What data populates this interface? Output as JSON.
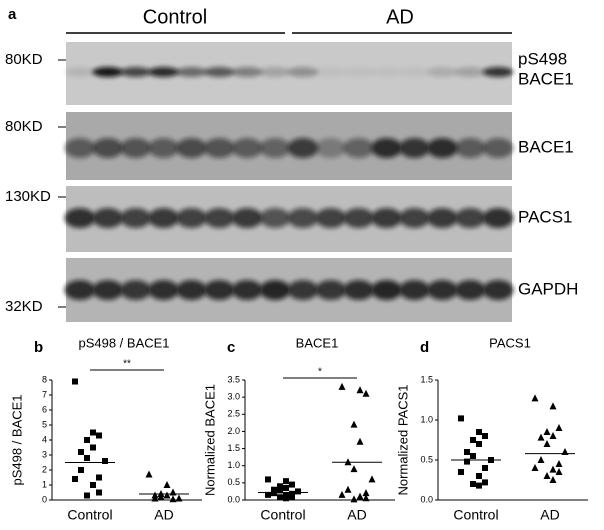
{
  "blot": {
    "panel_label": "a",
    "groups": [
      "Control",
      "AD"
    ],
    "markers": [
      "80KD",
      "80KD",
      "130KD",
      "32KD"
    ],
    "rows": [
      {
        "lines": [
          "pS498",
          "BACE1"
        ]
      },
      {
        "lines": [
          "BACE1"
        ]
      },
      {
        "lines": [
          "PACS1"
        ]
      },
      {
        "lines": [
          "GAPDH"
        ]
      }
    ]
  },
  "chart_data": [
    {
      "type": "scatter",
      "panel": "b",
      "title": "pS498 / BACE1",
      "y_label": "pS498 / BACE1",
      "categories": [
        "Control",
        "AD"
      ],
      "ylim": [
        0,
        8
      ],
      "yticks": [
        0,
        1,
        2,
        3,
        4,
        5,
        6,
        7,
        8
      ],
      "significance": "**",
      "series": [
        {
          "marker": "square",
          "color": "#000000",
          "mean": 2.5,
          "values": [
            7.9,
            4.5,
            4.3,
            4.0,
            3.5,
            3.2,
            2.8,
            2.6,
            2.0,
            1.5,
            1.4,
            1.0,
            0.5,
            0.3
          ]
        },
        {
          "marker": "triangle",
          "color": "#000000",
          "mean": 0.4,
          "values": [
            1.7,
            1.0,
            0.5,
            0.4,
            0.3,
            0.3,
            0.2,
            0.1,
            0.1,
            0.05
          ]
        }
      ]
    },
    {
      "type": "scatter",
      "panel": "c",
      "title": "BACE1",
      "y_label": "Normalized BACE1",
      "categories": [
        "Control",
        "AD"
      ],
      "ylim": [
        0,
        3.5
      ],
      "yticks": [
        {
          "value": 0,
          "label": "0.0"
        },
        0.5,
        {
          "value": 1,
          "label": "1.0"
        },
        1.5,
        {
          "value": 2,
          "label": "2.0"
        },
        2.5,
        {
          "value": 3,
          "label": "3.0"
        },
        3.5
      ],
      "significance": "*",
      "series": [
        {
          "marker": "square",
          "color": "#000000",
          "mean": 0.22,
          "values": [
            0.6,
            0.55,
            0.45,
            0.4,
            0.35,
            0.3,
            0.28,
            0.25,
            0.2,
            0.18,
            0.15,
            0.12,
            0.1,
            0.08,
            0.05
          ]
        },
        {
          "marker": "triangle",
          "color": "#000000",
          "mean": 1.1,
          "values": [
            3.3,
            3.2,
            3.1,
            2.2,
            1.7,
            1.1,
            0.9,
            0.6,
            0.3,
            0.2,
            0.15,
            0.1,
            0.05,
            0.02
          ]
        }
      ]
    },
    {
      "type": "scatter",
      "panel": "d",
      "title": "PACS1",
      "y_label": "Normalized PACS1",
      "categories": [
        "Control",
        "AD"
      ],
      "ylim": [
        0,
        1.5
      ],
      "yticks": [
        {
          "value": 0,
          "label": "0.0"
        },
        0.5,
        {
          "value": 1,
          "label": "1.0"
        },
        1.5
      ],
      "series": [
        {
          "marker": "square",
          "color": "#000000",
          "mean": 0.5,
          "values": [
            1.02,
            0.85,
            0.8,
            0.75,
            0.7,
            0.6,
            0.55,
            0.5,
            0.48,
            0.4,
            0.35,
            0.3,
            0.22,
            0.2,
            0.18
          ]
        },
        {
          "marker": "triangle",
          "color": "#000000",
          "mean": 0.58,
          "values": [
            1.27,
            1.17,
            0.9,
            0.85,
            0.8,
            0.78,
            0.7,
            0.6,
            0.5,
            0.45,
            0.4,
            0.38,
            0.35,
            0.3,
            0.25
          ]
        }
      ]
    }
  ]
}
